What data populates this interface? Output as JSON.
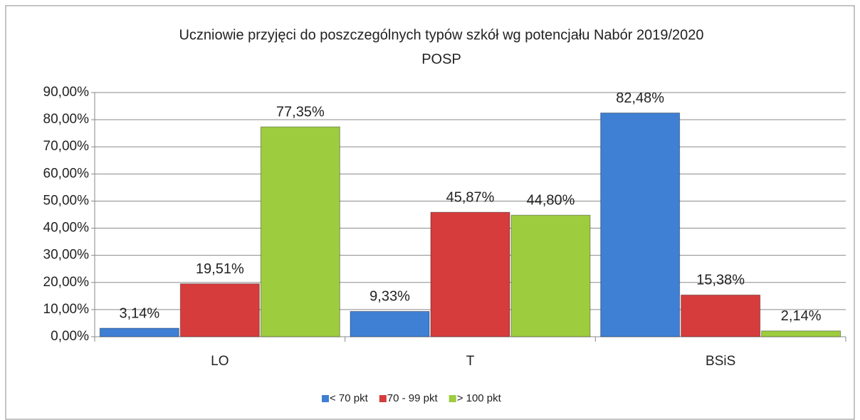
{
  "chart_data": {
    "type": "bar",
    "title": "Uczniowie przyjęci do poszczególnych typów szkół wg potencjału Nabór 2019/2020",
    "subtitle": "POSP",
    "categories": [
      "LO",
      "T",
      "BSiS"
    ],
    "series": [
      {
        "name": "< 70 pkt",
        "color": "#3f7fd4",
        "values": [
          3.14,
          9.33,
          82.48
        ],
        "value_labels": [
          "3,14%",
          "9,33%",
          "82,48%"
        ]
      },
      {
        "name": "70 - 99 pkt",
        "color": "#d63c3c",
        "values": [
          19.51,
          45.87,
          15.38
        ],
        "value_labels": [
          "19,51%",
          "45,87%",
          "15,38%"
        ]
      },
      {
        "name": "> 100 pkt",
        "color": "#9dcc3f",
        "values": [
          77.35,
          44.8,
          2.14
        ],
        "value_labels": [
          "77,35%",
          "44,80%",
          "2,14%"
        ]
      }
    ],
    "ylim": [
      0,
      90
    ],
    "yticks": [
      {
        "value": 0,
        "label": "0,00%"
      },
      {
        "value": 10,
        "label": "10,00%"
      },
      {
        "value": 20,
        "label": "20,00%"
      },
      {
        "value": 30,
        "label": "30,00%"
      },
      {
        "value": 40,
        "label": "40,00%"
      },
      {
        "value": 50,
        "label": "50,00%"
      },
      {
        "value": 60,
        "label": "60,00%"
      },
      {
        "value": 70,
        "label": "70,00%"
      },
      {
        "value": 80,
        "label": "80,00%"
      },
      {
        "value": 90,
        "label": "90,00%"
      }
    ],
    "grid": true,
    "legend": "bottom"
  }
}
